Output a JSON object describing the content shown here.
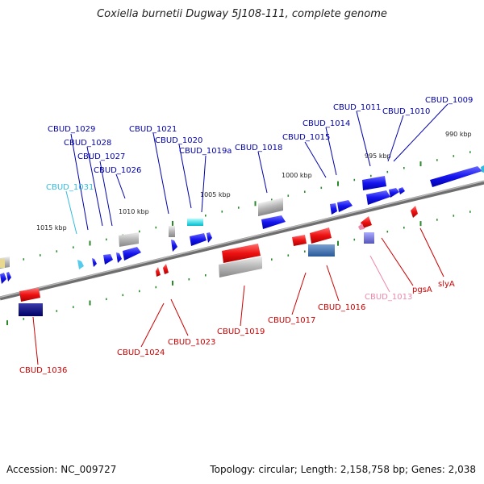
{
  "title": "Coxiella burnetii Dugway 5J108-111, complete genome",
  "footer": {
    "accession": "Accession: NC_009727",
    "summary": "Topology: circular; Length: 2,158,758 bp; Genes: 2,038"
  },
  "ticks": [
    {
      "label": "990 kbp"
    },
    {
      "label": "995 kbp"
    },
    {
      "label": "1000 kbp"
    },
    {
      "label": "1005 kbp"
    },
    {
      "label": "1010 kbp"
    },
    {
      "label": "1015 kbp"
    }
  ],
  "genes_top": [
    {
      "label": "CBUD_1009"
    },
    {
      "label": "CBUD_1010"
    },
    {
      "label": "CBUD_1011"
    },
    {
      "label": "CBUD_1014"
    },
    {
      "label": "CBUD_1015"
    },
    {
      "label": "CBUD_1018"
    },
    {
      "label": "CBUD_1019a"
    },
    {
      "label": "CBUD_1020"
    },
    {
      "label": "CBUD_1021"
    },
    {
      "label": "CBUD_1026"
    },
    {
      "label": "CBUD_1027"
    },
    {
      "label": "CBUD_1028"
    },
    {
      "label": "CBUD_1029"
    },
    {
      "label": "CBUD_1031"
    }
  ],
  "genes_bottom": [
    {
      "label": "slyA"
    },
    {
      "label": "pgsA"
    },
    {
      "label": "CBUD_1013"
    },
    {
      "label": "CBUD_1016"
    },
    {
      "label": "CBUD_1017"
    },
    {
      "label": "CBUD_1019"
    },
    {
      "label": "CBUD_1023"
    },
    {
      "label": "CBUD_1024"
    },
    {
      "label": "CBUD_1036"
    }
  ],
  "colors": {
    "forward": "#1a1aff",
    "reverse": "#e81010",
    "label_forward": "#0000aa",
    "label_reverse": "#cc0000",
    "label_cyan": "#33bbdd",
    "label_pink": "#ee88aa",
    "backbone": "#888888",
    "dots": "#228822"
  }
}
